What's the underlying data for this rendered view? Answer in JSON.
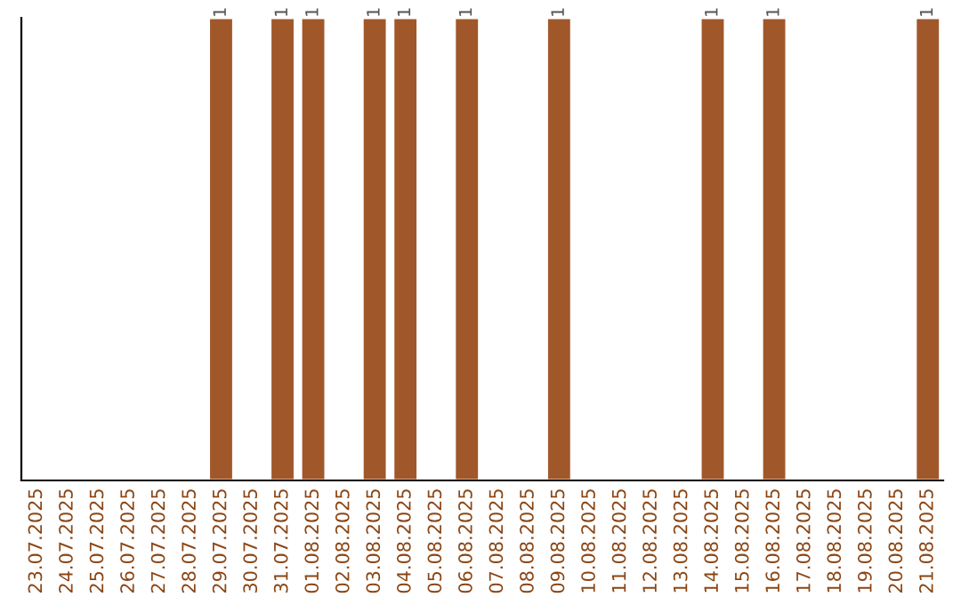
{
  "chart_data": {
    "type": "bar",
    "categories": [
      "23.07.2025",
      "24.07.2025",
      "25.07.2025",
      "26.07.2025",
      "27.07.2025",
      "28.07.2025",
      "29.07.2025",
      "30.07.2025",
      "31.07.2025",
      "01.08.2025",
      "02.08.2025",
      "03.08.2025",
      "04.08.2025",
      "05.08.2025",
      "06.08.2025",
      "07.08.2025",
      "08.08.2025",
      "09.08.2025",
      "10.08.2025",
      "11.08.2025",
      "12.08.2025",
      "13.08.2025",
      "14.08.2025",
      "15.08.2025",
      "16.08.2025",
      "17.08.2025",
      "18.08.2025",
      "19.08.2025",
      "20.08.2025",
      "21.08.2025"
    ],
    "values": [
      null,
      null,
      null,
      null,
      null,
      null,
      1,
      null,
      1,
      1,
      null,
      1,
      1,
      null,
      1,
      null,
      null,
      1,
      null,
      null,
      null,
      null,
      1,
      null,
      1,
      null,
      null,
      null,
      null,
      1
    ],
    "value_labels": [
      null,
      null,
      null,
      null,
      null,
      null,
      "1",
      null,
      "1",
      "1",
      null,
      "1",
      "1",
      null,
      "1",
      null,
      null,
      "1",
      null,
      null,
      null,
      null,
      "1",
      null,
      "1",
      null,
      null,
      null,
      null,
      "1"
    ],
    "color": "#a0582a",
    "ylim": [
      0,
      1
    ],
    "grid": false,
    "legend": false
  }
}
